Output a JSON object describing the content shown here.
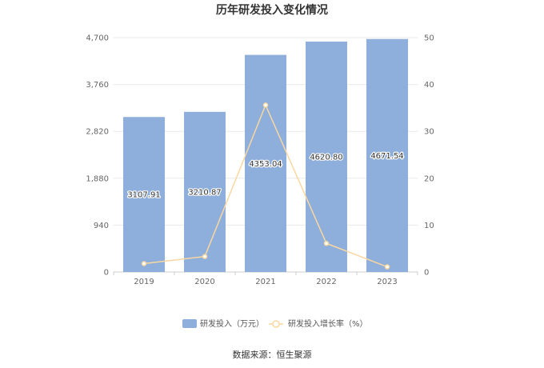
{
  "chart_data": {
    "type": "bar",
    "title": "历年研发投入变化情况",
    "categories": [
      "2019",
      "2020",
      "2021",
      "2022",
      "2023"
    ],
    "series": [
      {
        "name": "研发投入（万元）",
        "type": "bar",
        "axis": "left",
        "color": "#8eaedb",
        "values": [
          3107.91,
          3210.87,
          4353.04,
          4620.8,
          4671.54
        ],
        "labels": [
          "3107.91",
          "3210.87",
          "4353.04",
          "4620.80",
          "4671.54"
        ]
      },
      {
        "name": "研发投入增长率（%）",
        "type": "line",
        "axis": "right",
        "color": "#fad7a0",
        "values": [
          1.8,
          3.3,
          35.6,
          6.1,
          1.1
        ]
      }
    ],
    "y_left": {
      "ylim": [
        0,
        4700
      ],
      "ticks": [
        "0",
        "940",
        "1,880",
        "2,820",
        "3,760",
        "4,700"
      ],
      "tick_values": [
        0,
        940,
        1880,
        2820,
        3760,
        4700
      ]
    },
    "y_right": {
      "ylim": [
        0,
        50
      ],
      "ticks": [
        "0",
        "10",
        "20",
        "30",
        "40",
        "50"
      ],
      "tick_values": [
        0,
        10,
        20,
        30,
        40,
        50
      ]
    },
    "grid": true,
    "legend_position": "bottom-center"
  },
  "source": "数据来源：恒生聚源"
}
